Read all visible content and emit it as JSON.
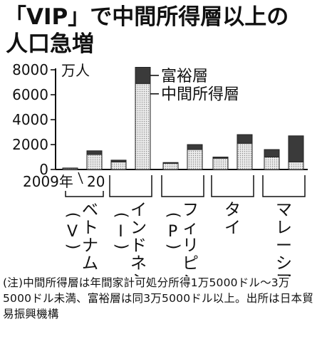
{
  "title": {
    "line1": "「VIP」で中間所得層以上の",
    "line2": "人口急増"
  },
  "chart_data": {
    "type": "bar",
    "stacked": true,
    "unit": "万人",
    "year_labels": [
      "2009年",
      "20"
    ],
    "ylim": [
      0,
      8000
    ],
    "yticks": [
      0,
      2000,
      4000,
      6000,
      8000
    ],
    "categories": [
      "ベトナム(V)",
      "インドネシア(I)",
      "フィリピン(P)",
      "タイ",
      "マレーシア"
    ],
    "category_labels": [
      {
        "main": "ベトナム",
        "paren": "V"
      },
      {
        "main": "インドネシア",
        "paren": "I"
      },
      {
        "main": "フィリピン",
        "paren": "P"
      },
      {
        "main": "タイ",
        "paren": ""
      },
      {
        "main": "マレーシア",
        "paren": ""
      }
    ],
    "series": [
      {
        "name": "中間所得層",
        "values": [
          [
            100,
            1200
          ],
          [
            600,
            6900
          ],
          [
            500,
            1600
          ],
          [
            900,
            2100
          ],
          [
            1000,
            600
          ]
        ]
      },
      {
        "name": "富裕層",
        "values": [
          [
            20,
            300
          ],
          [
            150,
            1300
          ],
          [
            60,
            400
          ],
          [
            100,
            700
          ],
          [
            600,
            2100
          ]
        ]
      }
    ],
    "colors": {
      "middle": "#d4d4d4",
      "rich": "#3a3a3a",
      "axis": "#111111"
    },
    "legend_position": "right"
  },
  "note": "(注)中間所得層は年間家計可処分所得1万5000ドル〜3万5000ドル未満、富裕層は同3万5000ドル以上。出所は日本貿易振興機構"
}
